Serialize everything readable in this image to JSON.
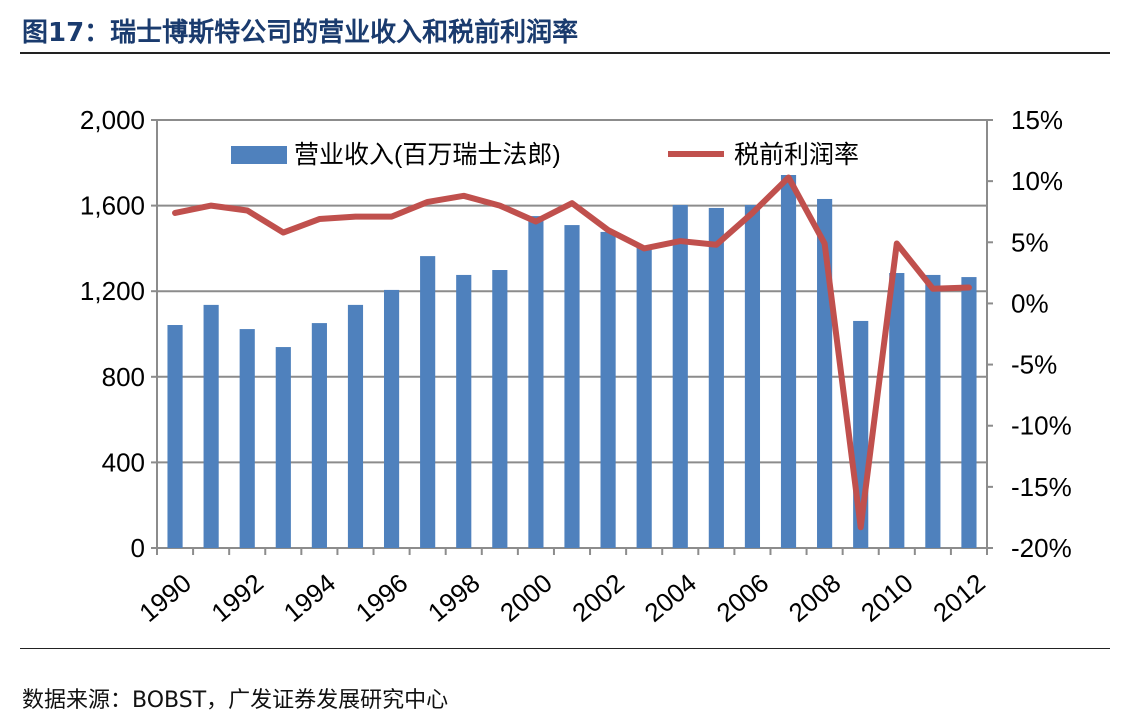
{
  "title": "图17：瑞士博斯特公司的营业收入和税前利润率",
  "source": "数据来源：BOBST，广发证券发展研究中心",
  "chart_data": {
    "type": "bar+line",
    "title": "",
    "categories": [
      1990,
      1991,
      1992,
      1993,
      1994,
      1995,
      1996,
      1997,
      1998,
      1999,
      2000,
      2001,
      2002,
      2003,
      2004,
      2005,
      2006,
      2007,
      2008,
      2009,
      2010,
      2011,
      2012
    ],
    "x_tick_labels": [
      "1990",
      "1992",
      "1994",
      "1996",
      "1998",
      "2000",
      "2002",
      "2004",
      "2006",
      "2008",
      "2010",
      "2012"
    ],
    "y_left": {
      "range": [
        0,
        2000
      ],
      "ticks": [
        "0",
        "400",
        "800",
        "1,200",
        "1,600",
        "2,000"
      ]
    },
    "y_right": {
      "range": [
        -20,
        15
      ],
      "ticks": [
        "-20%",
        "-15%",
        "-10%",
        "-5%",
        "0%",
        "5%",
        "10%",
        "15%"
      ]
    },
    "grid": true,
    "legend_placement": "top",
    "series": [
      {
        "name": "营业收入(百万瑞士法郎)",
        "type": "bar",
        "axis": "left",
        "color": "#4f81bd",
        "values": [
          1042,
          1136,
          1023,
          939,
          1051,
          1136,
          1206,
          1364,
          1276,
          1299,
          1551,
          1509,
          1477,
          1411,
          1603,
          1589,
          1603,
          1743,
          1631,
          1061,
          1285,
          1276,
          1266
        ]
      },
      {
        "name": "税前利润率",
        "type": "line",
        "axis": "right",
        "unit": "%",
        "color": "#c0504d",
        "values": [
          7.4,
          8.0,
          7.6,
          5.8,
          6.9,
          7.1,
          7.1,
          8.3,
          8.8,
          8.0,
          6.7,
          8.2,
          6.0,
          4.5,
          5.1,
          4.8,
          7.4,
          10.3,
          4.9,
          -18.3,
          4.9,
          1.2,
          1.3
        ]
      }
    ]
  }
}
